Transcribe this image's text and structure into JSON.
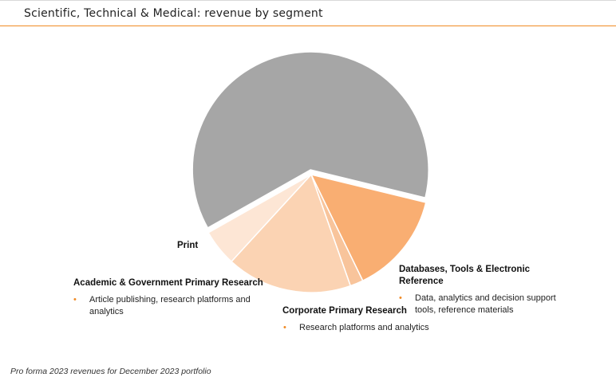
{
  "header": {
    "title": "Scientific, Technical & Medical: revenue by segment"
  },
  "chart_data": {
    "type": "pie",
    "title": "Scientific, Technical & Medical: revenue by segment",
    "slices": [
      {
        "name": "",
        "value": 62,
        "color": "#a6a6a6",
        "exploded": true
      },
      {
        "name": "Databases, Tools & Electronic Reference",
        "value": 14,
        "color": "#f9ae72",
        "bullet": "Data, analytics and decision support tools, reference materials"
      },
      {
        "name": "Corporate Primary Research",
        "value": 1.8,
        "color": "#f8c49b",
        "bullet": "Research platforms and analytics"
      },
      {
        "name": "Academic & Government Primary Research",
        "value": 17.2,
        "color": "#fbd3b3",
        "bullet": "Article publishing, research platforms and analytics"
      },
      {
        "name": "Print",
        "value": 5,
        "color": "#fde6d5"
      }
    ]
  },
  "labels": {
    "print": "Print",
    "academic": "Academic & Government Primary Research",
    "academic_bullet": "Article publishing, research platforms and analytics",
    "databases": "Databases, Tools & Electronic Reference",
    "databases_bullet": "Data, analytics and decision support tools, reference materials",
    "corporate": "Corporate Primary Research",
    "corporate_bullet": "Research platforms and analytics"
  },
  "footnote": "Pro forma 2023 revenues for December 2023 portfolio"
}
